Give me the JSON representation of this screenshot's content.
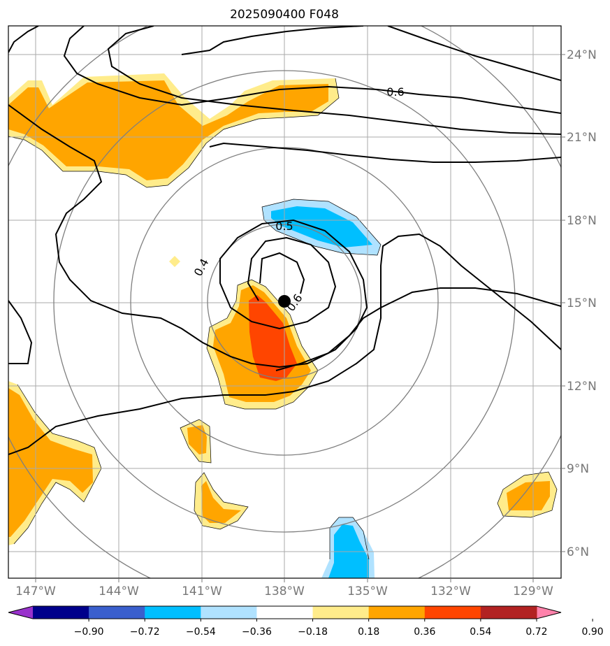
{
  "title": "2025090400 F048",
  "lon_ticks": [
    "147°W",
    "144°W",
    "141°W",
    "138°W",
    "135°W",
    "132°W",
    "129°W"
  ],
  "lat_ticks": [
    "24°N",
    "21°N",
    "18°N",
    "15°N",
    "12°N",
    "9°N",
    "6°N"
  ],
  "contour_labels": [
    "0.6",
    "0.5",
    "0.4",
    "0.6"
  ],
  "colorbar": {
    "ticks": [
      "−0.90",
      "−0.72",
      "−0.54",
      "−0.36",
      "−0.18",
      "0.18",
      "0.36",
      "0.54",
      "0.72",
      "0.90"
    ],
    "colors": [
      "#9932cc",
      "#00008b",
      "#3a5fcd",
      "#00bfff",
      "#b0e2ff",
      "#ffffff",
      "#ffec8b",
      "#ffa500",
      "#ff4500",
      "#b22222",
      "#ff82ab"
    ]
  },
  "storm_center": {
    "lat": 15.0,
    "lon": -138.0
  }
}
